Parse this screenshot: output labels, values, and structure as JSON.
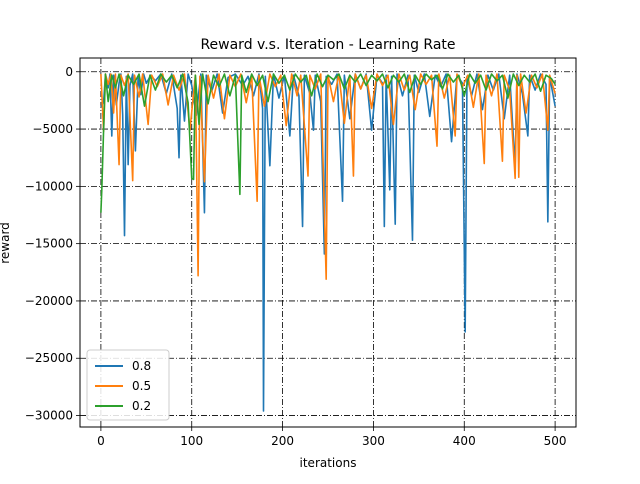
{
  "chart_data": {
    "type": "line",
    "title": "Reward v.s. Iteration - Learning Rate",
    "xlabel": "iterations",
    "ylabel": "reward",
    "xlim": [
      -23,
      523
    ],
    "ylim": [
      -31000,
      1200
    ],
    "xticks": [
      0,
      100,
      200,
      300,
      400,
      500
    ],
    "yticks": [
      0,
      -5000,
      -10000,
      -15000,
      -20000,
      -25000,
      -30000
    ],
    "grid": true,
    "grid_style": "dash-dot",
    "legend_position": "lower left",
    "series": [
      {
        "name": "0.8",
        "color": "#1f77b4",
        "points": [
          [
            0,
            -3100
          ],
          [
            3,
            -2600
          ],
          [
            5,
            -300
          ],
          [
            8,
            -1400
          ],
          [
            10,
            -200
          ],
          [
            12,
            -5600
          ],
          [
            14,
            -300
          ],
          [
            17,
            -2900
          ],
          [
            20,
            -1000
          ],
          [
            22,
            -200
          ],
          [
            24,
            -3800
          ],
          [
            26,
            -14300
          ],
          [
            28,
            -400
          ],
          [
            30,
            -8100
          ],
          [
            32,
            -1200
          ],
          [
            35,
            -200
          ],
          [
            38,
            -6900
          ],
          [
            41,
            -400
          ],
          [
            44,
            -2000
          ],
          [
            47,
            -200
          ],
          [
            50,
            -1000
          ],
          [
            55,
            -300
          ],
          [
            60,
            -800
          ],
          [
            66,
            -200
          ],
          [
            72,
            -1900
          ],
          [
            78,
            -200
          ],
          [
            84,
            -3200
          ],
          [
            86,
            -7500
          ],
          [
            88,
            -300
          ],
          [
            92,
            -4300
          ],
          [
            96,
            -200
          ],
          [
            100,
            -1200
          ],
          [
            105,
            -3800
          ],
          [
            110,
            -200
          ],
          [
            114,
            -12300
          ],
          [
            116,
            -300
          ],
          [
            122,
            -1700
          ],
          [
            128,
            -200
          ],
          [
            134,
            -3600
          ],
          [
            140,
            -500
          ],
          [
            148,
            -200
          ],
          [
            156,
            -1200
          ],
          [
            162,
            -400
          ],
          [
            168,
            -2100
          ],
          [
            174,
            -200
          ],
          [
            178,
            -3200
          ],
          [
            179,
            -29600
          ],
          [
            181,
            -400
          ],
          [
            186,
            -8200
          ],
          [
            190,
            -200
          ],
          [
            196,
            -2300
          ],
          [
            202,
            -300
          ],
          [
            208,
            -5600
          ],
          [
            212,
            -300
          ],
          [
            218,
            -2100
          ],
          [
            222,
            -13500
          ],
          [
            224,
            -300
          ],
          [
            230,
            -1900
          ],
          [
            234,
            -5100
          ],
          [
            236,
            -300
          ],
          [
            242,
            -2600
          ],
          [
            246,
            -15900
          ],
          [
            248,
            -400
          ],
          [
            254,
            -1100
          ],
          [
            260,
            -200
          ],
          [
            266,
            -11300
          ],
          [
            268,
            -300
          ],
          [
            274,
            -4100
          ],
          [
            280,
            -200
          ],
          [
            286,
            -1500
          ],
          [
            292,
            -200
          ],
          [
            298,
            -5100
          ],
          [
            304,
            -300
          ],
          [
            310,
            -1000
          ],
          [
            312,
            -13500
          ],
          [
            314,
            -300
          ],
          [
            318,
            -10300
          ],
          [
            320,
            -400
          ],
          [
            324,
            -13300
          ],
          [
            326,
            -200
          ],
          [
            332,
            -2100
          ],
          [
            338,
            -300
          ],
          [
            343,
            -14700
          ],
          [
            345,
            -300
          ],
          [
            350,
            -1800
          ],
          [
            356,
            -200
          ],
          [
            362,
            -3900
          ],
          [
            368,
            -300
          ],
          [
            374,
            -1300
          ],
          [
            380,
            -200
          ],
          [
            386,
            -6100
          ],
          [
            392,
            -300
          ],
          [
            398,
            -1000
          ],
          [
            401,
            -22700
          ],
          [
            403,
            -400
          ],
          [
            408,
            -2100
          ],
          [
            414,
            -200
          ],
          [
            420,
            -3300
          ],
          [
            426,
            -300
          ],
          [
            432,
            -1600
          ],
          [
            438,
            -200
          ],
          [
            444,
            -4100
          ],
          [
            450,
            -300
          ],
          [
            456,
            -8300
          ],
          [
            458,
            -200
          ],
          [
            464,
            -1900
          ],
          [
            470,
            -5600
          ],
          [
            472,
            -300
          ],
          [
            478,
            -1600
          ],
          [
            484,
            -200
          ],
          [
            490,
            -1100
          ],
          [
            492,
            -13100
          ],
          [
            494,
            -400
          ],
          [
            500,
            -3000
          ]
        ]
      },
      {
        "name": "0.5",
        "color": "#ff7f0e",
        "points": [
          [
            0,
            -200
          ],
          [
            3,
            -5200
          ],
          [
            5,
            -200
          ],
          [
            8,
            -1100
          ],
          [
            11,
            -200
          ],
          [
            14,
            -3600
          ],
          [
            16,
            -200
          ],
          [
            20,
            -8100
          ],
          [
            22,
            -300
          ],
          [
            26,
            -1200
          ],
          [
            30,
            -200
          ],
          [
            35,
            -9500
          ],
          [
            37,
            -300
          ],
          [
            42,
            -2200
          ],
          [
            46,
            -200
          ],
          [
            52,
            -4600
          ],
          [
            56,
            -300
          ],
          [
            62,
            -1300
          ],
          [
            68,
            -200
          ],
          [
            74,
            -2900
          ],
          [
            80,
            -300
          ],
          [
            86,
            -1600
          ],
          [
            92,
            -200
          ],
          [
            98,
            -5100
          ],
          [
            104,
            -300
          ],
          [
            107,
            -17800
          ],
          [
            109,
            -400
          ],
          [
            114,
            -9600
          ],
          [
            118,
            -300
          ],
          [
            124,
            -2300
          ],
          [
            130,
            -200
          ],
          [
            136,
            -4100
          ],
          [
            142,
            -300
          ],
          [
            148,
            -1300
          ],
          [
            154,
            -200
          ],
          [
            160,
            -2700
          ],
          [
            166,
            -300
          ],
          [
            172,
            -11300
          ],
          [
            174,
            -300
          ],
          [
            180,
            -3000
          ],
          [
            186,
            -200
          ],
          [
            192,
            -1300
          ],
          [
            198,
            -300
          ],
          [
            204,
            -4700
          ],
          [
            210,
            -200
          ],
          [
            216,
            -2100
          ],
          [
            220,
            -300
          ],
          [
            228,
            -9100
          ],
          [
            230,
            -300
          ],
          [
            236,
            -1500
          ],
          [
            242,
            -200
          ],
          [
            248,
            -18100
          ],
          [
            250,
            -300
          ],
          [
            256,
            -2600
          ],
          [
            262,
            -200
          ],
          [
            268,
            -4500
          ],
          [
            274,
            -300
          ],
          [
            278,
            -9100
          ],
          [
            280,
            -200
          ],
          [
            286,
            -1500
          ],
          [
            292,
            -300
          ],
          [
            298,
            -3200
          ],
          [
            304,
            -200
          ],
          [
            310,
            -1200
          ],
          [
            316,
            -300
          ],
          [
            322,
            -4600
          ],
          [
            328,
            -200
          ],
          [
            334,
            -1600
          ],
          [
            340,
            -300
          ],
          [
            346,
            -3300
          ],
          [
            352,
            -200
          ],
          [
            358,
            -1100
          ],
          [
            364,
            -300
          ],
          [
            370,
            -6500
          ],
          [
            372,
            -200
          ],
          [
            378,
            -2300
          ],
          [
            384,
            -300
          ],
          [
            390,
            -5600
          ],
          [
            392,
            -200
          ],
          [
            398,
            -1300
          ],
          [
            404,
            -300
          ],
          [
            410,
            -3100
          ],
          [
            416,
            -200
          ],
          [
            422,
            -8000
          ],
          [
            424,
            -300
          ],
          [
            430,
            -2100
          ],
          [
            436,
            -200
          ],
          [
            442,
            -7800
          ],
          [
            444,
            -300
          ],
          [
            450,
            -1600
          ],
          [
            456,
            -9300
          ],
          [
            458,
            -300
          ],
          [
            460,
            -9200
          ],
          [
            462,
            -200
          ],
          [
            468,
            -3600
          ],
          [
            474,
            -300
          ],
          [
            480,
            -1400
          ],
          [
            486,
            -200
          ],
          [
            492,
            -5100
          ],
          [
            494,
            -300
          ],
          [
            500,
            -1900
          ]
        ]
      },
      {
        "name": "0.2",
        "color": "#2ca02c",
        "points": [
          [
            0,
            -12300
          ],
          [
            1,
            -10300
          ],
          [
            3,
            -5000
          ],
          [
            5,
            -200
          ],
          [
            8,
            -2600
          ],
          [
            12,
            -300
          ],
          [
            16,
            -1400
          ],
          [
            20,
            -200
          ],
          [
            25,
            -2100
          ],
          [
            30,
            -300
          ],
          [
            36,
            -1100
          ],
          [
            42,
            -200
          ],
          [
            48,
            -3000
          ],
          [
            54,
            -300
          ],
          [
            60,
            -1600
          ],
          [
            66,
            -200
          ],
          [
            72,
            -900
          ],
          [
            78,
            -300
          ],
          [
            84,
            -1400
          ],
          [
            90,
            -200
          ],
          [
            96,
            -2700
          ],
          [
            100,
            -9300
          ],
          [
            102,
            -9400
          ],
          [
            104,
            -300
          ],
          [
            108,
            -4600
          ],
          [
            112,
            -200
          ],
          [
            118,
            -2800
          ],
          [
            124,
            -300
          ],
          [
            130,
            -1300
          ],
          [
            136,
            -200
          ],
          [
            142,
            -2100
          ],
          [
            148,
            -300
          ],
          [
            153,
            -10700
          ],
          [
            155,
            -300
          ],
          [
            160,
            -1800
          ],
          [
            166,
            -200
          ],
          [
            172,
            -1200
          ],
          [
            178,
            -300
          ],
          [
            184,
            -2600
          ],
          [
            190,
            -200
          ],
          [
            196,
            -1000
          ],
          [
            202,
            -300
          ],
          [
            208,
            -1600
          ],
          [
            214,
            -200
          ],
          [
            220,
            -900
          ],
          [
            226,
            -300
          ],
          [
            232,
            -2100
          ],
          [
            238,
            -200
          ],
          [
            244,
            -1300
          ],
          [
            250,
            -300
          ],
          [
            256,
            -700
          ],
          [
            262,
            -200
          ],
          [
            268,
            -1500
          ],
          [
            274,
            -300
          ],
          [
            280,
            -900
          ],
          [
            286,
            -200
          ],
          [
            292,
            -1200
          ],
          [
            298,
            -300
          ],
          [
            304,
            -800
          ],
          [
            310,
            -200
          ],
          [
            316,
            -1400
          ],
          [
            322,
            -300
          ],
          [
            328,
            -900
          ],
          [
            334,
            -200
          ],
          [
            340,
            -1800
          ],
          [
            346,
            -300
          ],
          [
            352,
            -1100
          ],
          [
            358,
            -200
          ],
          [
            364,
            -700
          ],
          [
            370,
            -300
          ],
          [
            376,
            -1500
          ],
          [
            382,
            -200
          ],
          [
            388,
            -900
          ],
          [
            394,
            -300
          ],
          [
            400,
            -2100
          ],
          [
            406,
            -200
          ],
          [
            412,
            -1000
          ],
          [
            418,
            -300
          ],
          [
            424,
            -1600
          ],
          [
            430,
            -200
          ],
          [
            436,
            -800
          ],
          [
            442,
            -300
          ],
          [
            448,
            -2300
          ],
          [
            454,
            -200
          ],
          [
            460,
            -1200
          ],
          [
            466,
            -300
          ],
          [
            472,
            -900
          ],
          [
            478,
            -200
          ],
          [
            484,
            -1700
          ],
          [
            490,
            -300
          ],
          [
            496,
            -600
          ],
          [
            500,
            -1100
          ]
        ]
      }
    ]
  }
}
